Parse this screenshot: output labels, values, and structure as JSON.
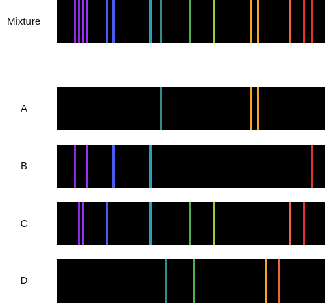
{
  "colors": {
    "violet": "#8a2be2",
    "purple": "#9b30ff",
    "blue": "#4a5cf0",
    "teal": "#2a9fb8",
    "teal2": "#2e8f8a",
    "green": "#4caf50",
    "lime": "#9acd32",
    "orange": "#f5a623",
    "redorange": "#f0643c",
    "red": "#e8332a"
  },
  "spectra": [
    {
      "label": "Mixture",
      "lines": [
        {
          "pos": 0.068,
          "color": "#8a2be2"
        },
        {
          "pos": 0.084,
          "color": "#8a2be2"
        },
        {
          "pos": 0.098,
          "color": "#9b30ff"
        },
        {
          "pos": 0.112,
          "color": "#9b30ff"
        },
        {
          "pos": 0.189,
          "color": "#4a5cf0"
        },
        {
          "pos": 0.21,
          "color": "#4a5cf0"
        },
        {
          "pos": 0.348,
          "color": "#2a9fb8"
        },
        {
          "pos": 0.391,
          "color": "#2e8f8a"
        },
        {
          "pos": 0.496,
          "color": "#4caf50"
        },
        {
          "pos": 0.586,
          "color": "#9acd32"
        },
        {
          "pos": 0.726,
          "color": "#f5a623"
        },
        {
          "pos": 0.751,
          "color": "#f5a623"
        },
        {
          "pos": 0.872,
          "color": "#f0643c"
        },
        {
          "pos": 0.923,
          "color": "#e8332a"
        },
        {
          "pos": 0.951,
          "color": "#e8332a"
        }
      ]
    },
    {
      "label": "A",
      "lines": [
        {
          "pos": 0.391,
          "color": "#2e8f8a"
        },
        {
          "pos": 0.726,
          "color": "#f5a623"
        },
        {
          "pos": 0.751,
          "color": "#f5a623"
        }
      ]
    },
    {
      "label": "B",
      "lines": [
        {
          "pos": 0.068,
          "color": "#8a2be2"
        },
        {
          "pos": 0.112,
          "color": "#9b30ff"
        },
        {
          "pos": 0.21,
          "color": "#4a5cf0"
        },
        {
          "pos": 0.348,
          "color": "#2a9fb8"
        },
        {
          "pos": 0.951,
          "color": "#e8332a"
        }
      ]
    },
    {
      "label": "C",
      "lines": [
        {
          "pos": 0.084,
          "color": "#8a2be2"
        },
        {
          "pos": 0.098,
          "color": "#9b30ff"
        },
        {
          "pos": 0.189,
          "color": "#4a5cf0"
        },
        {
          "pos": 0.348,
          "color": "#2a9fb8"
        },
        {
          "pos": 0.496,
          "color": "#4caf50"
        },
        {
          "pos": 0.586,
          "color": "#9acd32"
        },
        {
          "pos": 0.872,
          "color": "#f0643c"
        },
        {
          "pos": 0.923,
          "color": "#e8332a"
        }
      ]
    },
    {
      "label": "D",
      "lines": [
        {
          "pos": 0.409,
          "color": "#2e8f8a"
        },
        {
          "pos": 0.512,
          "color": "#4caf50"
        },
        {
          "pos": 0.78,
          "color": "#f5a623"
        },
        {
          "pos": 0.831,
          "color": "#f0643c"
        }
      ]
    }
  ]
}
